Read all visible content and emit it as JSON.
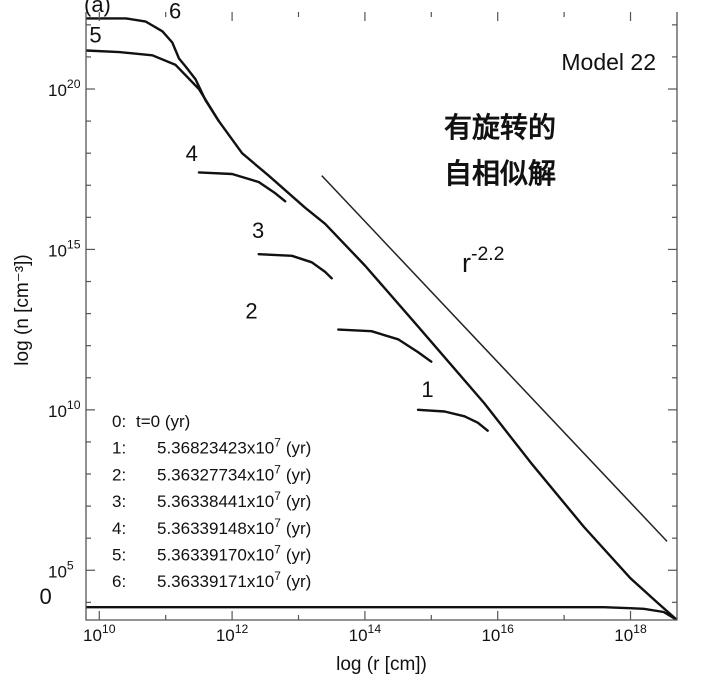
{
  "chart_data": {
    "type": "line",
    "title": "",
    "panel_label": "(a)",
    "model_label": "Model 22",
    "annotation_lines": [
      "有旋转的",
      "自相似解"
    ],
    "xlabel": "log (r [cm])",
    "ylabel": "log (n [cm⁻³])",
    "x_scale": "log",
    "y_scale": "log",
    "xlim_log10": [
      9.8,
      18.7
    ],
    "ylim_log10": [
      3.45,
      22.4
    ],
    "x_ticks": [
      {
        "base": "10",
        "exp": "10",
        "value": 10
      },
      {
        "base": "10",
        "exp": "12",
        "value": 12
      },
      {
        "base": "10",
        "exp": "14",
        "value": 14
      },
      {
        "base": "10",
        "exp": "16",
        "value": 16
      },
      {
        "base": "10",
        "exp": "18",
        "value": 18
      }
    ],
    "y_ticks": [
      {
        "base": "10",
        "exp": "5",
        "value": 5
      },
      {
        "base": "10",
        "exp": "10",
        "value": 10
      },
      {
        "base": "10",
        "exp": "15",
        "value": 15
      },
      {
        "base": "10",
        "exp": "20",
        "value": 20
      }
    ],
    "reference_line": {
      "label_base": "r",
      "label_exp": "-2.2",
      "points": [
        [
          13.35,
          17.3
        ],
        [
          18.55,
          5.9
        ]
      ]
    },
    "legend": {
      "placement": "bottom-left",
      "entries": [
        {
          "key": "0:",
          "text": "t=0 (yr)"
        },
        {
          "key": "1:",
          "text": "5.36823423x10",
          "sup": "7",
          "unit": "(yr)"
        },
        {
          "key": "2:",
          "text": "5.36327734x10",
          "sup": "7",
          "unit": "(yr)"
        },
        {
          "key": "3:",
          "text": "5.36338441x10",
          "sup": "7",
          "unit": "(yr)"
        },
        {
          "key": "4:",
          "text": "5.36339148x10",
          "sup": "7",
          "unit": "(yr)"
        },
        {
          "key": "5:",
          "text": "5.36339170x10",
          "sup": "7",
          "unit": "(yr)"
        },
        {
          "key": "6:",
          "text": "5.36339171x10",
          "sup": "7",
          "unit": "(yr)"
        }
      ]
    },
    "series": [
      {
        "name": "0",
        "label_at": [
          9.1,
          3.95
        ],
        "points": [
          [
            9.0,
            3.85
          ],
          [
            17.6,
            3.85
          ],
          [
            18.2,
            3.8
          ],
          [
            18.5,
            3.7
          ],
          [
            18.7,
            3.45
          ]
        ]
      },
      {
        "name": "1",
        "label_at": [
          14.85,
          10.4
        ],
        "points": [
          [
            14.8,
            10.0
          ],
          [
            15.2,
            9.95
          ],
          [
            15.5,
            9.8
          ],
          [
            15.7,
            9.6
          ],
          [
            15.85,
            9.35
          ]
        ]
      },
      {
        "name": "2",
        "label_at": [
          12.2,
          12.85
        ],
        "points": [
          [
            13.6,
            12.5
          ],
          [
            14.1,
            12.45
          ],
          [
            14.5,
            12.2
          ],
          [
            14.8,
            11.8
          ],
          [
            15.0,
            11.5
          ]
        ]
      },
      {
        "name": "3",
        "label_at": [
          12.3,
          15.35
        ],
        "points": [
          [
            12.4,
            14.85
          ],
          [
            12.9,
            14.8
          ],
          [
            13.2,
            14.6
          ],
          [
            13.4,
            14.3
          ],
          [
            13.5,
            14.1
          ]
        ]
      },
      {
        "name": "4",
        "label_at": [
          11.3,
          17.75
        ],
        "points": [
          [
            11.5,
            17.4
          ],
          [
            12.0,
            17.35
          ],
          [
            12.4,
            17.1
          ],
          [
            12.65,
            16.75
          ],
          [
            12.8,
            16.5
          ]
        ]
      },
      {
        "name": "5",
        "label_at": [
          9.85,
          21.45
        ],
        "points": [
          [
            9.8,
            21.2
          ],
          [
            10.3,
            21.15
          ],
          [
            10.8,
            21.05
          ],
          [
            11.15,
            20.75
          ],
          [
            11.5,
            20.0
          ],
          [
            11.8,
            19.0
          ],
          [
            12.15,
            18.0
          ],
          [
            12.55,
            17.3
          ],
          [
            13.1,
            16.3
          ],
          [
            13.4,
            15.8
          ],
          [
            14.0,
            14.5
          ],
          [
            14.8,
            12.6
          ],
          [
            15.8,
            10.2
          ],
          [
            16.5,
            8.35
          ],
          [
            17.3,
            6.35
          ],
          [
            18.0,
            4.75
          ],
          [
            18.4,
            4.0
          ],
          [
            18.7,
            3.45
          ]
        ]
      },
      {
        "name": "6",
        "label_at": [
          11.05,
          22.2
        ],
        "points": [
          [
            9.8,
            22.2
          ],
          [
            10.4,
            22.2
          ],
          [
            10.7,
            22.1
          ],
          [
            10.95,
            21.8
          ],
          [
            11.1,
            21.45
          ],
          [
            11.2,
            20.95
          ],
          [
            11.3,
            20.7
          ],
          [
            11.45,
            20.3
          ],
          [
            11.6,
            19.65
          ],
          [
            11.8,
            19.0
          ]
        ]
      }
    ]
  }
}
